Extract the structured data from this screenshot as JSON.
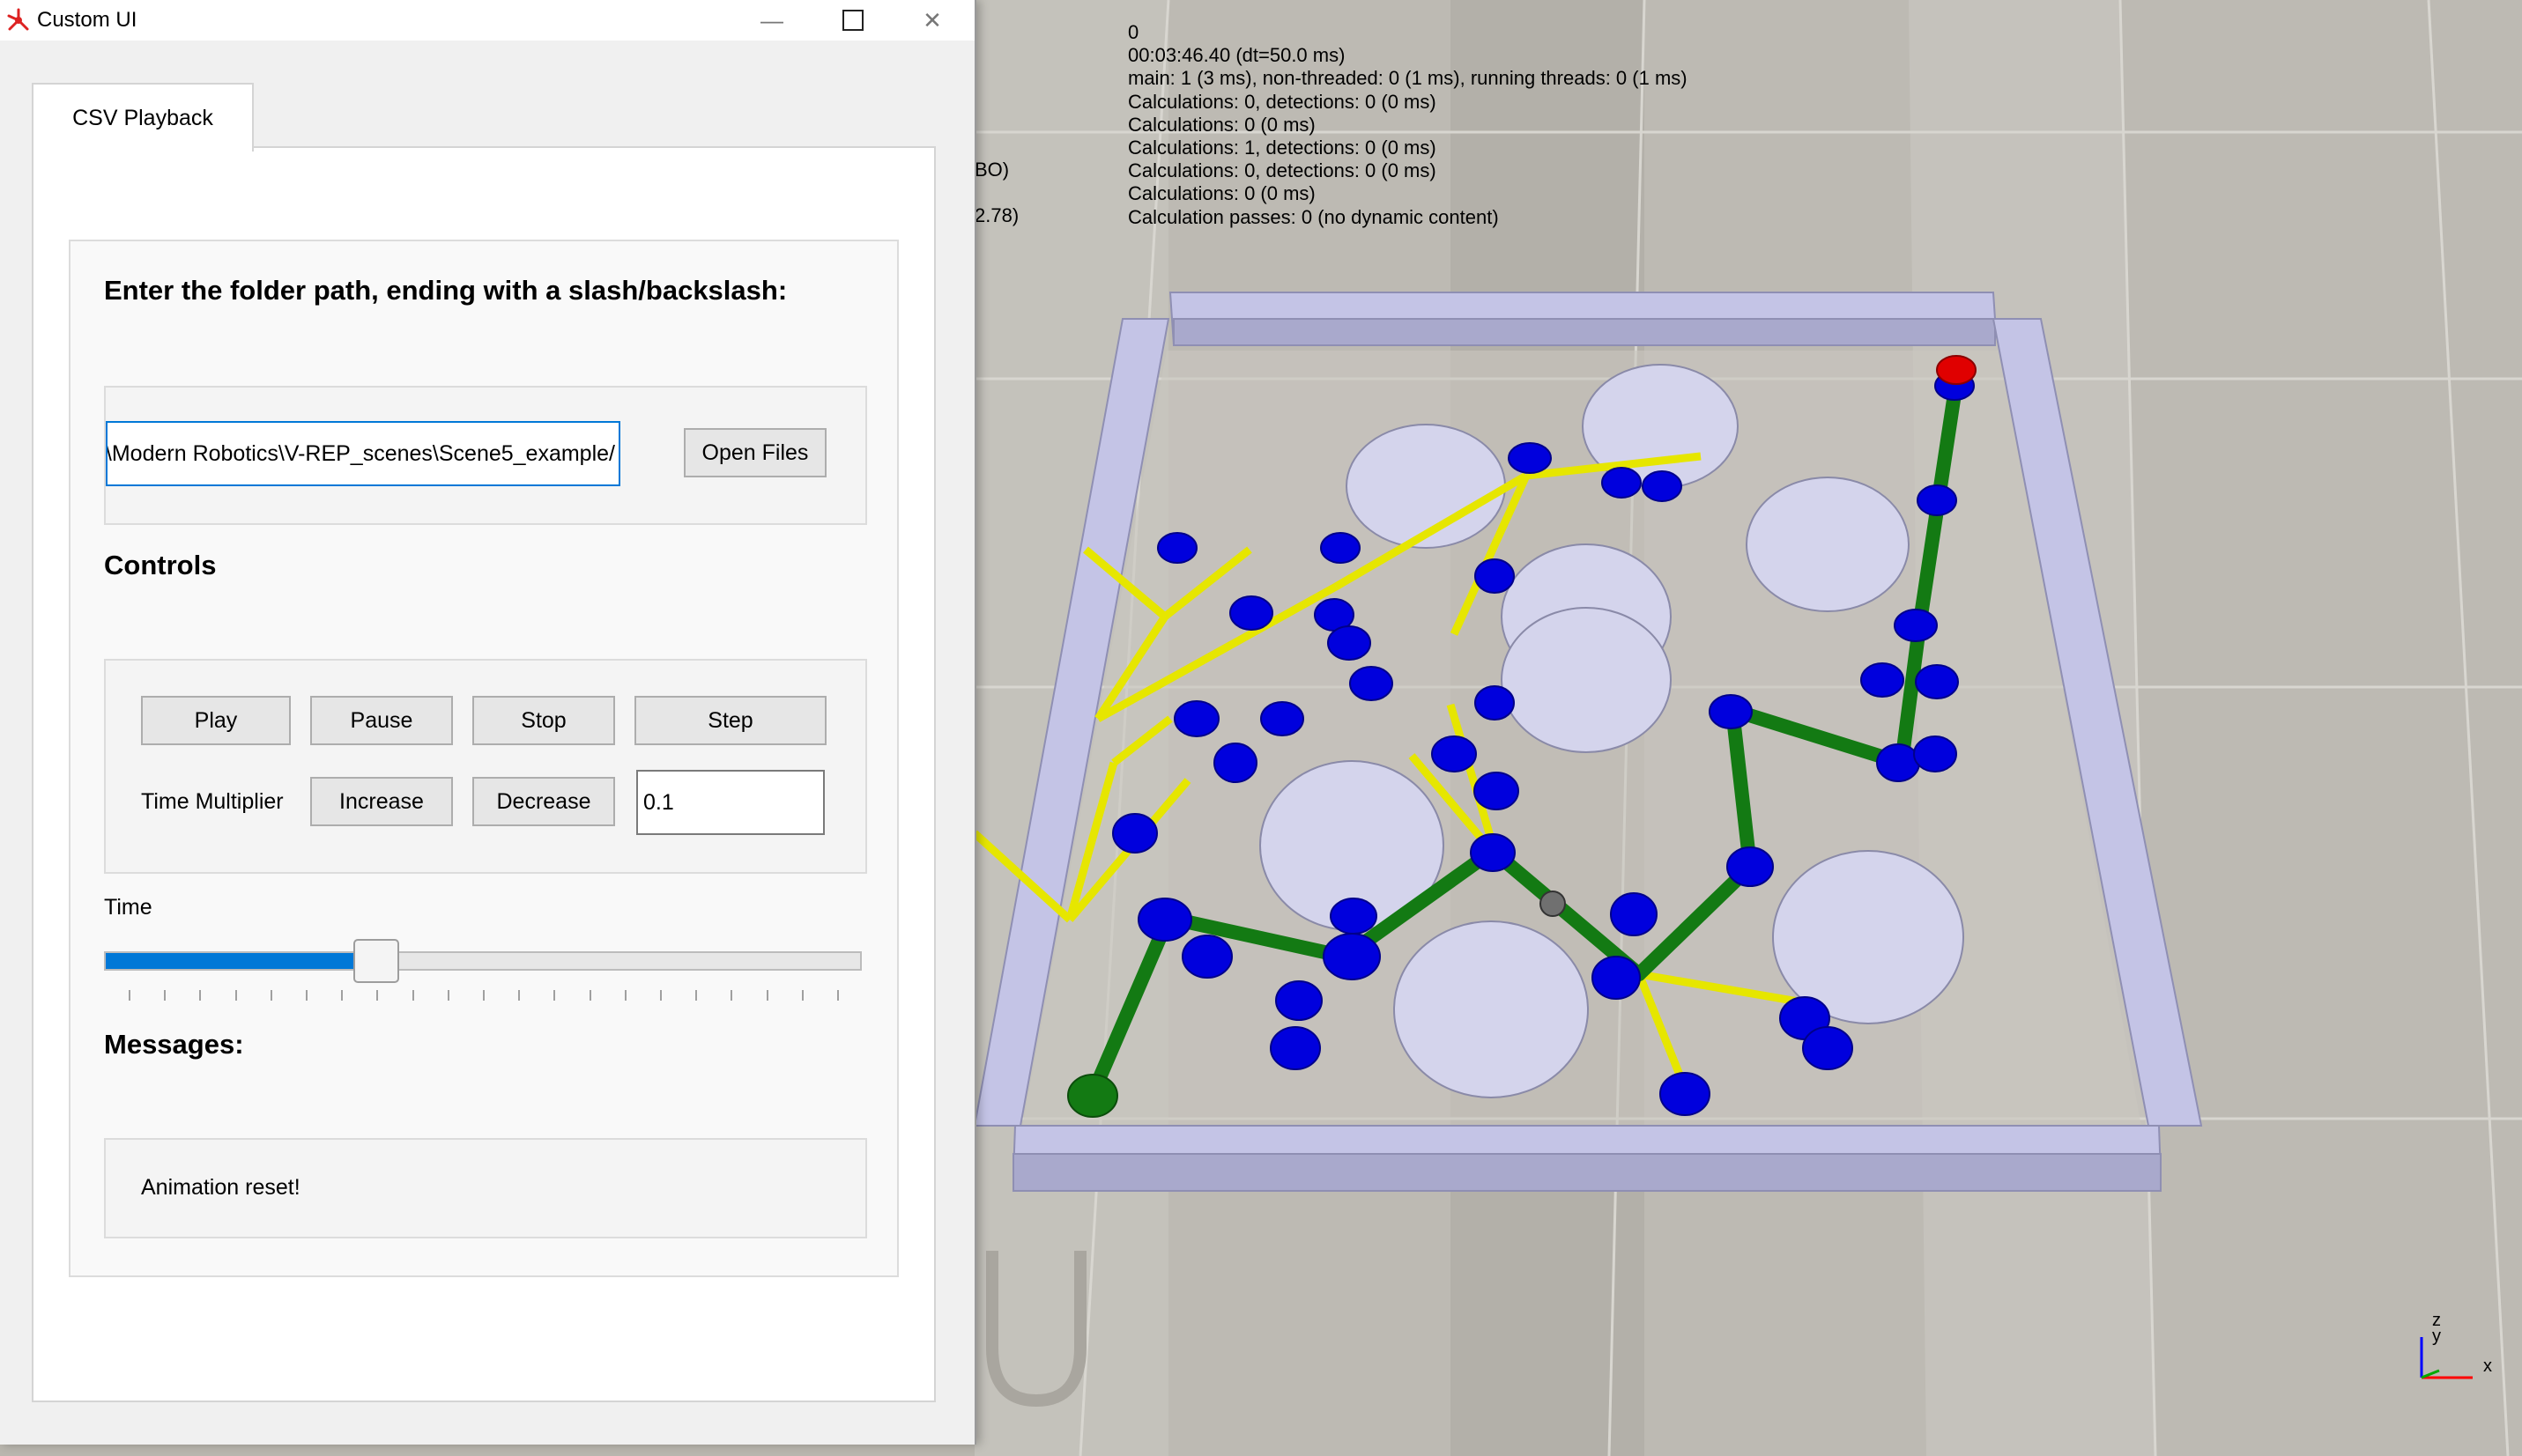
{
  "window": {
    "title": "Custom UI",
    "tab_label": "CSV Playback",
    "controls_icons": [
      "minimize-icon",
      "maximize-icon",
      "close-icon"
    ]
  },
  "folder": {
    "heading": "Enter the folder path, ending with a slash/backslash:",
    "path_value": "\\Modern Robotics\\V-REP_scenes\\Scene5_example/",
    "open_label": "Open Files"
  },
  "controls": {
    "heading": "Controls",
    "play": "Play",
    "pause": "Pause",
    "stop": "Stop",
    "step": "Step",
    "time_multiplier_label": "Time Multiplier",
    "increase": "Increase",
    "decrease": "Decrease",
    "multiplier_value": "0.1"
  },
  "time": {
    "label": "Time",
    "position_fraction": 0.35
  },
  "messages": {
    "heading": "Messages:",
    "text": "Animation reset!"
  },
  "simulation": {
    "info_lines": [
      "0",
      "00:03:46.40 (dt=50.0 ms)",
      "main: 1 (3 ms), non-threaded: 0 (1 ms), running threads: 0 (1 ms)",
      "Calculations: 0, detections: 0 (0 ms)",
      "Calculations: 0 (0 ms)",
      "Calculations: 1, detections: 0 (0 ms)",
      "Calculations: 0, detections: 0 (0 ms)",
      "Calculations: 0 (0 ms)",
      "Calculation passes: 0 (no dynamic content)"
    ],
    "partial_left": [
      "BO)",
      "2.78)"
    ],
    "axes": [
      "x",
      "y",
      "z"
    ]
  },
  "colors": {
    "accent": "#0078d7",
    "wall": "#c4c4e6",
    "obstacle": "#d4d4ec",
    "node": "#0000dd",
    "tree_edge": "#e6e600",
    "path_edge": "#137a13",
    "start": "#137a13",
    "goal": "#e00000"
  }
}
